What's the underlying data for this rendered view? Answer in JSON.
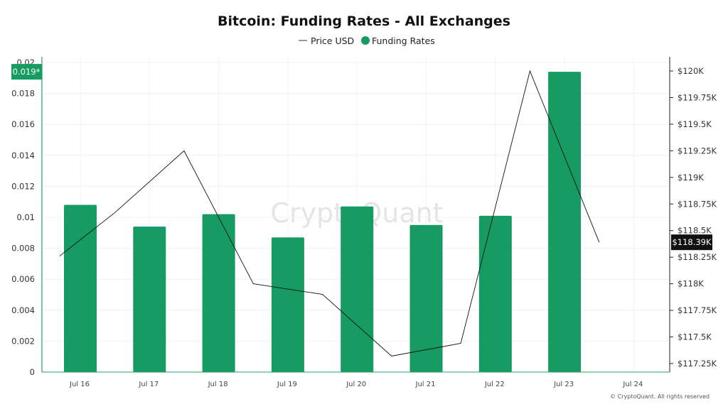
{
  "chart_data": {
    "type": "bar",
    "title": "Bitcoin: Funding Rates - All Exchanges",
    "categories": [
      "Jul 16",
      "Jul 17",
      "Jul 18",
      "Jul 19",
      "Jul 20",
      "Jul 21",
      "Jul 22",
      "Jul 23",
      "Jul 24"
    ],
    "series": [
      {
        "name": "Funding Rates",
        "type": "bar",
        "axis": "left",
        "color": "#169b62",
        "values": [
          0.0108,
          0.0094,
          0.0102,
          0.0087,
          0.0107,
          0.0095,
          0.0101,
          0.0194,
          null
        ]
      },
      {
        "name": "Price USD",
        "type": "line",
        "axis": "right",
        "color": "#111111",
        "x_index": [
          -0.3,
          0.5,
          1.5,
          2.5,
          3.5,
          4.5,
          5.5,
          6.5,
          7.5
        ],
        "values": [
          118260,
          118670,
          119250,
          118000,
          117900,
          117320,
          117440,
          120000,
          118390
        ]
      }
    ],
    "left_axis": {
      "ylim": [
        0,
        0.02
      ],
      "ticks": [
        0,
        0.002,
        0.004,
        0.006,
        0.008,
        0.01,
        0.012,
        0.014,
        0.016,
        0.018,
        0.02
      ],
      "tick_labels": [
        "0",
        "0.002",
        "0.004",
        "0.006",
        "0.008",
        "0.01",
        "0.012",
        "0.014",
        "0.016",
        "0.018",
        "0.02"
      ]
    },
    "right_axis": {
      "ylim": [
        117250,
        120000
      ],
      "ticks": [
        117250,
        117500,
        117750,
        118000,
        118250,
        118500,
        118750,
        119000,
        119250,
        119500,
        119750,
        120000
      ],
      "tick_labels": [
        "$117.25K",
        "$117.5K",
        "$117.75K",
        "$118K",
        "$118.25K",
        "$118.5K",
        "$118.75K",
        "$119K",
        "$119.25K",
        "$119.5K",
        "$119.75K",
        "$120K"
      ]
    },
    "left_marker": {
      "label": "0.019*",
      "value": 0.0194,
      "color": "#169b62"
    },
    "right_marker": {
      "label": "$118.39K",
      "value": 118390,
      "color": "#111111"
    },
    "grid": true,
    "legend_placement": "top-center",
    "legend": [
      {
        "label": "Price USD",
        "symbol": "line"
      },
      {
        "label": "Funding Rates",
        "symbol": "dot"
      }
    ]
  },
  "watermark": "CryptoQuant",
  "credit": "© CryptoQuant. All rights reserved"
}
